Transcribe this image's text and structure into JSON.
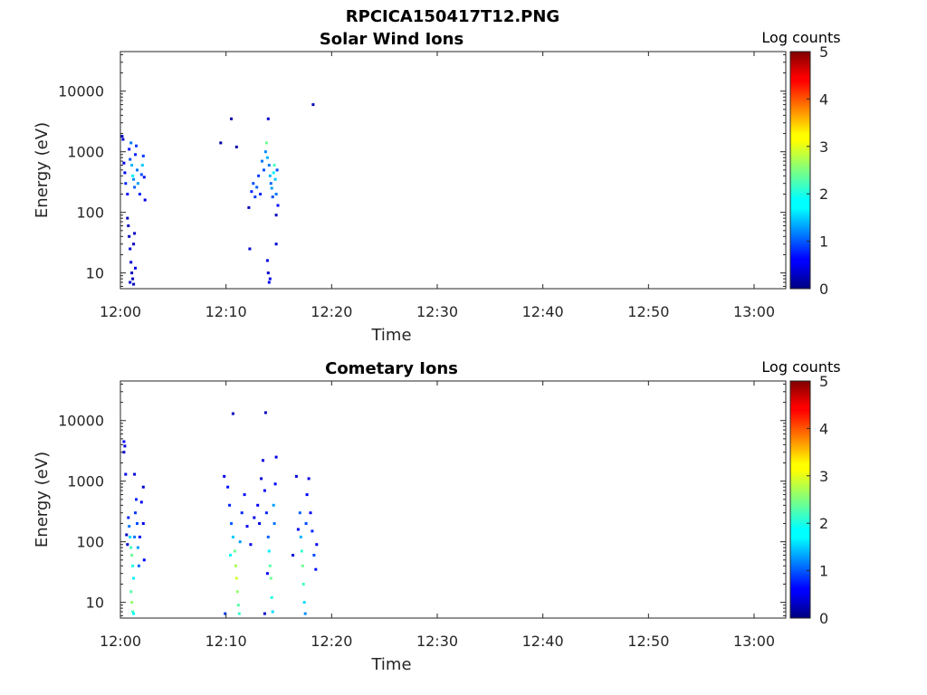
{
  "figure": {
    "title": "RPCICA150417T12.PNG"
  },
  "chart_data": [
    {
      "type": "heatmap",
      "title": "Solar Wind Ions",
      "xlabel": "Time",
      "ylabel": "Energy (eV)",
      "yscale": "log",
      "xlim": [
        "12:00",
        "13:03"
      ],
      "ylim": [
        5.5,
        45000
      ],
      "xticks": [
        "12:00",
        "12:10",
        "12:20",
        "12:30",
        "12:40",
        "12:50",
        "13:00"
      ],
      "yticks": [
        10,
        100,
        1000,
        10000
      ],
      "ytick_labels": [
        "10",
        "100",
        "1000",
        "10000"
      ],
      "colorbar": {
        "label": "Log counts",
        "range": [
          0,
          5
        ],
        "ticks": [
          "0",
          "1",
          "2",
          "3",
          "4",
          "5"
        ],
        "colormap": "jet"
      },
      "background": "#ffffff",
      "points": [
        [
          "12:00:10",
          1800,
          0.3
        ],
        [
          "12:00:15",
          1600,
          0.4
        ],
        [
          "12:00:20",
          650,
          0.5
        ],
        [
          "12:00:25",
          450,
          0.6
        ],
        [
          "12:00:30",
          300,
          0.8
        ],
        [
          "12:00:40",
          200,
          0.6
        ],
        [
          "12:00:50",
          1100,
          0.7
        ],
        [
          "12:00:55",
          750,
          1.0
        ],
        [
          "12:01:00",
          1400,
          1.2
        ],
        [
          "12:01:05",
          600,
          1.5
        ],
        [
          "12:01:10",
          400,
          1.8
        ],
        [
          "12:01:15",
          350,
          1.3
        ],
        [
          "12:01:20",
          260,
          1.1
        ],
        [
          "12:01:25",
          900,
          0.8
        ],
        [
          "12:01:30",
          1250,
          0.9
        ],
        [
          "12:01:35",
          500,
          1.2
        ],
        [
          "12:01:40",
          300,
          1.4
        ],
        [
          "12:01:50",
          200,
          0.8
        ],
        [
          "12:02:00",
          420,
          1.0
        ],
        [
          "12:02:05",
          600,
          1.6
        ],
        [
          "12:02:10",
          850,
          0.9
        ],
        [
          "12:02:15",
          380,
          0.7
        ],
        [
          "12:02:20",
          160,
          0.5
        ],
        [
          "12:00:40",
          80,
          0.3
        ],
        [
          "12:00:45",
          60,
          0.3
        ],
        [
          "12:00:50",
          40,
          0.3
        ],
        [
          "12:00:55",
          25,
          0.4
        ],
        [
          "12:01:00",
          15,
          0.4
        ],
        [
          "12:01:05",
          10,
          0.3
        ],
        [
          "12:01:10",
          8,
          0.3
        ],
        [
          "12:01:15",
          30,
          0.3
        ],
        [
          "12:01:20",
          45,
          0.3
        ],
        [
          "12:01:25",
          12,
          0.5
        ],
        [
          "12:00:55",
          7,
          0.4
        ],
        [
          "12:01:15",
          6.5,
          0.3
        ],
        [
          "12:09:30",
          1400,
          0.2
        ],
        [
          "12:10:30",
          3500,
          0.2
        ],
        [
          "12:11:00",
          1200,
          0.2
        ],
        [
          "12:12:10",
          120,
          0.3
        ],
        [
          "12:12:15",
          25,
          0.4
        ],
        [
          "12:12:25",
          220,
          0.8
        ],
        [
          "12:12:35",
          300,
          1.0
        ],
        [
          "12:12:45",
          180,
          0.9
        ],
        [
          "12:12:55",
          260,
          1.1
        ],
        [
          "12:13:05",
          400,
          0.9
        ],
        [
          "12:13:15",
          200,
          0.8
        ],
        [
          "12:13:25",
          700,
          1.2
        ],
        [
          "12:13:35",
          500,
          1.0
        ],
        [
          "12:13:45",
          1000,
          1.3
        ],
        [
          "12:13:50",
          1400,
          2.4
        ],
        [
          "12:13:55",
          800,
          1.5
        ],
        [
          "12:14:00",
          3500,
          0.4
        ],
        [
          "12:14:05",
          600,
          1.2
        ],
        [
          "12:14:10",
          400,
          1.5
        ],
        [
          "12:14:15",
          300,
          1.1
        ],
        [
          "12:14:20",
          250,
          1.4
        ],
        [
          "12:14:25",
          180,
          1.0
        ],
        [
          "12:14:30",
          450,
          1.8
        ],
        [
          "12:14:35",
          600,
          2.2
        ],
        [
          "12:14:40",
          350,
          1.6
        ],
        [
          "12:14:45",
          200,
          1.2
        ],
        [
          "12:14:50",
          500,
          1.0
        ],
        [
          "12:14:55",
          130,
          0.6
        ],
        [
          "12:13:55",
          16,
          0.5
        ],
        [
          "12:14:00",
          10,
          0.4
        ],
        [
          "12:14:05",
          7,
          0.6
        ],
        [
          "12:14:10",
          8,
          0.5
        ],
        [
          "12:14:45",
          30,
          0.4
        ],
        [
          "12:14:45",
          90,
          0.3
        ],
        [
          "12:18:15",
          6000,
          0.3
        ]
      ]
    },
    {
      "type": "heatmap",
      "title": "Cometary Ions",
      "xlabel": "Time",
      "ylabel": "Energy (eV)",
      "yscale": "log",
      "xlim": [
        "12:00",
        "13:03"
      ],
      "ylim": [
        5.5,
        45000
      ],
      "xticks": [
        "12:00",
        "12:10",
        "12:20",
        "12:30",
        "12:40",
        "12:50",
        "13:00"
      ],
      "yticks": [
        10,
        100,
        1000,
        10000
      ],
      "ytick_labels": [
        "10",
        "100",
        "1000",
        "10000"
      ],
      "colorbar": {
        "label": "Log counts",
        "range": [
          0,
          5
        ],
        "ticks": [
          "0",
          "1",
          "2",
          "3",
          "4",
          "5"
        ],
        "colormap": "jet"
      },
      "background": "#ffffff",
      "points": [
        [
          "12:00:20",
          4500,
          0.6
        ],
        [
          "12:00:25",
          3800,
          0.5
        ],
        [
          "12:00:20",
          3000,
          0.4
        ],
        [
          "12:00:30",
          1300,
          0.5
        ],
        [
          "12:01:20",
          1300,
          0.4
        ],
        [
          "12:02:10",
          800,
          0.4
        ],
        [
          "12:00:45",
          250,
          0.8
        ],
        [
          "12:00:50",
          180,
          1.2
        ],
        [
          "12:00:55",
          120,
          1.7
        ],
        [
          "12:01:00",
          80,
          2.2
        ],
        [
          "12:01:05",
          60,
          2.4
        ],
        [
          "12:01:10",
          40,
          2.0
        ],
        [
          "12:01:15",
          25,
          1.8
        ],
        [
          "12:01:00",
          15,
          2.3
        ],
        [
          "12:01:05",
          10,
          2.6
        ],
        [
          "12:01:10",
          7,
          2.2
        ],
        [
          "12:01:15",
          6.5,
          1.9
        ],
        [
          "12:01:20",
          120,
          1.2
        ],
        [
          "12:01:25",
          300,
          0.9
        ],
        [
          "12:01:30",
          500,
          0.8
        ],
        [
          "12:01:35",
          200,
          1.0
        ],
        [
          "12:01:40",
          80,
          1.4
        ],
        [
          "12:01:45",
          40,
          1.1
        ],
        [
          "12:01:50",
          120,
          0.7
        ],
        [
          "12:02:00",
          450,
          0.6
        ],
        [
          "12:02:10",
          200,
          0.5
        ],
        [
          "12:02:15",
          50,
          0.6
        ],
        [
          "12:00:40",
          90,
          0.4
        ],
        [
          "12:00:35",
          130,
          0.3
        ],
        [
          "12:09:50",
          1200,
          0.5
        ],
        [
          "12:10:10",
          800,
          0.7
        ],
        [
          "12:10:20",
          400,
          0.8
        ],
        [
          "12:10:30",
          200,
          1.1
        ],
        [
          "12:10:40",
          120,
          1.6
        ],
        [
          "12:10:50",
          70,
          2.4
        ],
        [
          "12:10:55",
          40,
          2.7
        ],
        [
          "12:11:00",
          25,
          2.9
        ],
        [
          "12:11:05",
          15,
          2.6
        ],
        [
          "12:11:10",
          9,
          2.3
        ],
        [
          "12:11:15",
          6.5,
          2.1
        ],
        [
          "12:09:55",
          6.5,
          0.9
        ],
        [
          "12:10:25",
          60,
          1.9
        ],
        [
          "12:11:20",
          100,
          1.4
        ],
        [
          "12:11:30",
          300,
          0.8
        ],
        [
          "12:11:45",
          600,
          0.7
        ],
        [
          "12:12:00",
          180,
          0.6
        ],
        [
          "12:12:20",
          90,
          0.5
        ],
        [
          "12:12:40",
          250,
          0.5
        ],
        [
          "12:13:00",
          400,
          0.6
        ],
        [
          "12:13:10",
          200,
          0.5
        ],
        [
          "12:13:20",
          1100,
          0.4
        ],
        [
          "12:13:30",
          2200,
          0.5
        ],
        [
          "12:13:40",
          700,
          0.6
        ],
        [
          "12:13:50",
          300,
          0.8
        ],
        [
          "12:14:00",
          120,
          1.1
        ],
        [
          "12:14:05",
          70,
          1.8
        ],
        [
          "12:14:10",
          40,
          2.3
        ],
        [
          "12:14:15",
          25,
          2.4
        ],
        [
          "12:14:20",
          12,
          2.0
        ],
        [
          "12:14:25",
          7,
          1.7
        ],
        [
          "12:13:55",
          30,
          0.6
        ],
        [
          "12:13:40",
          6.5,
          0.4
        ],
        [
          "12:14:30",
          400,
          1.4
        ],
        [
          "12:14:35",
          200,
          1.2
        ],
        [
          "12:14:40",
          900,
          0.6
        ],
        [
          "12:14:45",
          2500,
          0.5
        ],
        [
          "12:10:40",
          13000,
          0.3
        ],
        [
          "12:13:45",
          13500,
          0.3
        ],
        [
          "12:16:20",
          60,
          0.5
        ],
        [
          "12:16:40",
          1200,
          0.4
        ],
        [
          "12:16:50",
          160,
          0.6
        ],
        [
          "12:17:00",
          300,
          1.1
        ],
        [
          "12:17:05",
          120,
          1.5
        ],
        [
          "12:17:10",
          70,
          2.1
        ],
        [
          "12:17:15",
          40,
          2.4
        ],
        [
          "12:17:20",
          20,
          2.2
        ],
        [
          "12:17:25",
          10,
          1.7
        ],
        [
          "12:17:30",
          6.5,
          1.3
        ],
        [
          "12:17:35",
          200,
          1.0
        ],
        [
          "12:17:40",
          600,
          0.6
        ],
        [
          "12:17:50",
          1100,
          0.5
        ],
        [
          "12:18:00",
          300,
          0.6
        ],
        [
          "12:18:10",
          150,
          0.8
        ],
        [
          "12:18:20",
          60,
          1.0
        ],
        [
          "12:18:30",
          35,
          0.7
        ],
        [
          "12:18:35",
          90,
          0.5
        ]
      ]
    }
  ]
}
